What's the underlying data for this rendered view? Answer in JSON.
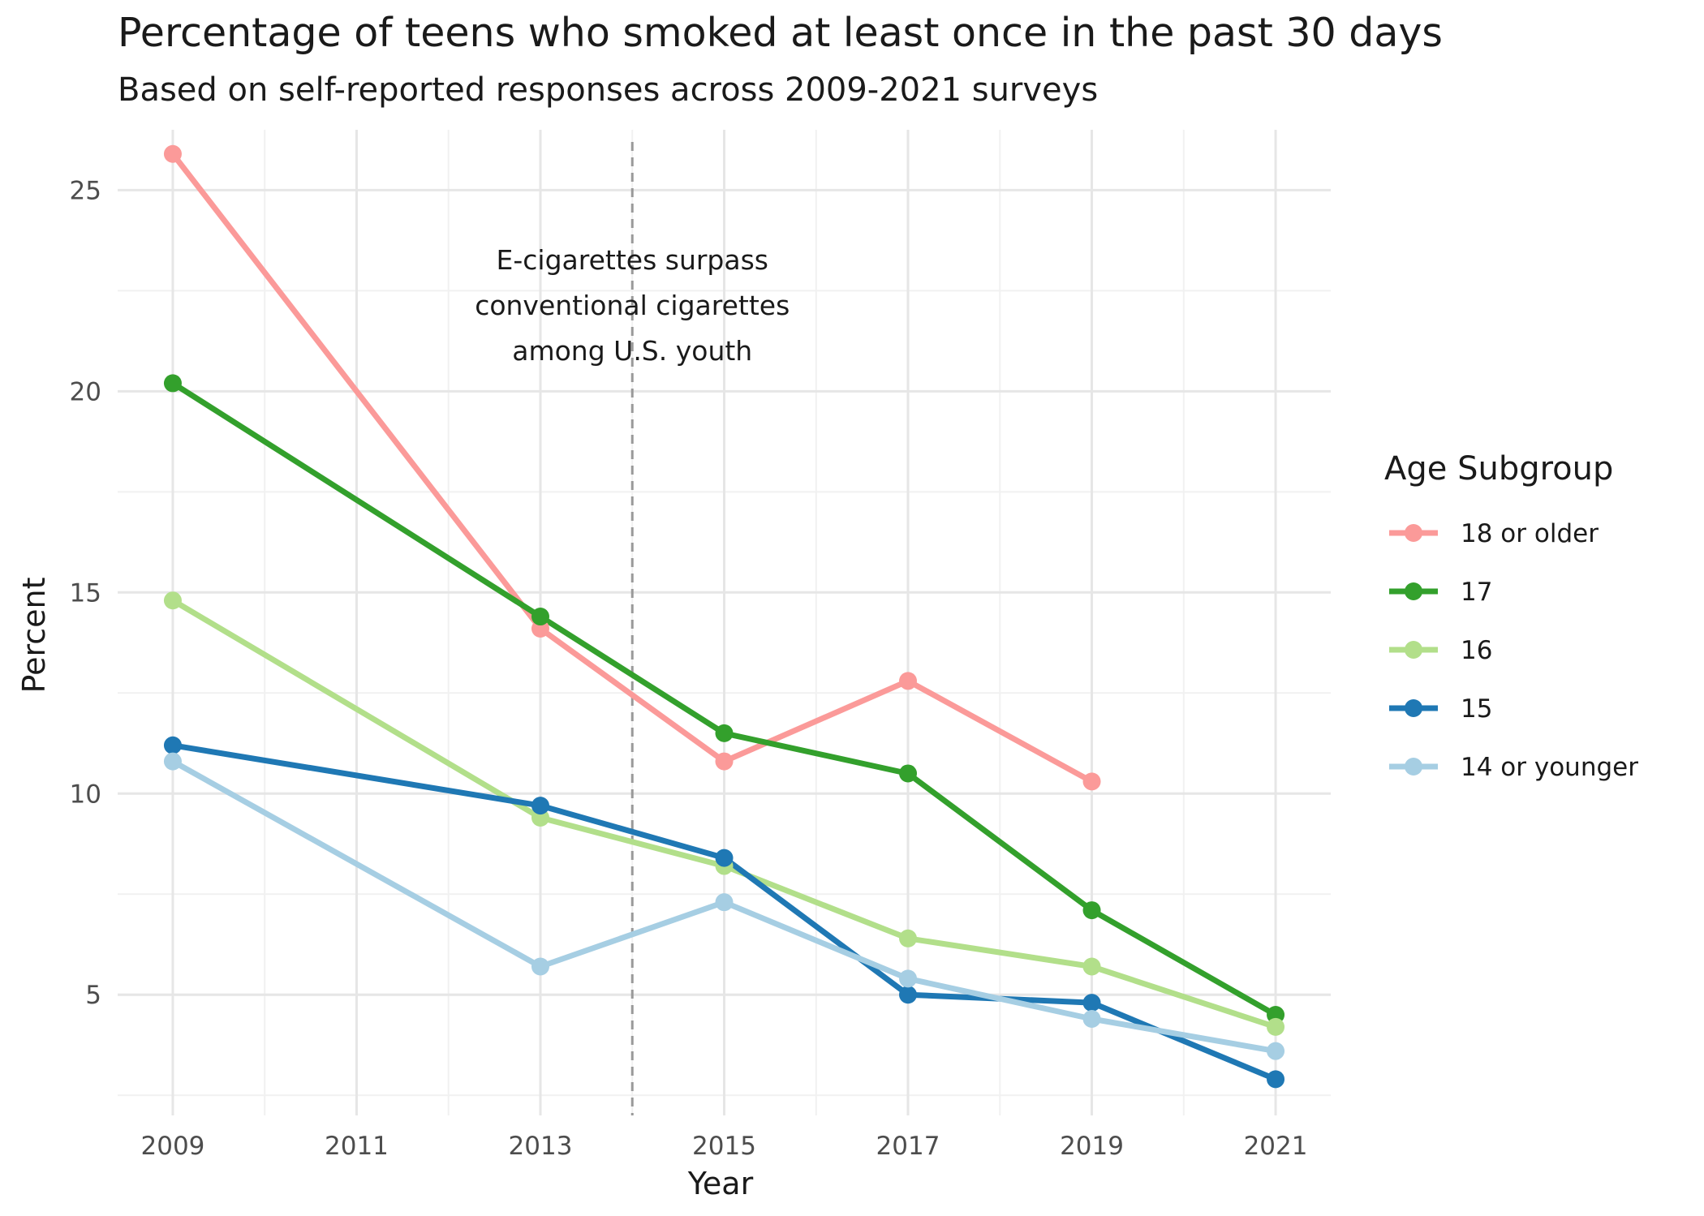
{
  "chart_data": {
    "type": "line",
    "title": "Percentage of teens who smoked at least once in the past 30 days",
    "subtitle": "Based on self-reported responses across 2009-2021 surveys",
    "xlabel": "Year",
    "ylabel": "Percent",
    "x_ticks": [
      2009,
      2011,
      2013,
      2015,
      2017,
      2019,
      2021
    ],
    "y_ticks": [
      5,
      10,
      15,
      20,
      25
    ],
    "xlim": [
      2008.4,
      2021.6
    ],
    "ylim": [
      2.0,
      26.5
    ],
    "grid": true,
    "legend": {
      "title": "Age Subgroup",
      "position": "right"
    },
    "annotation": {
      "x": 2014,
      "line_style": "dashed",
      "color": "#999999",
      "text_lines": [
        "E-cigarettes surpass",
        "conventional cigarettes",
        "among U.S. youth"
      ]
    },
    "series": [
      {
        "name": "18 or older",
        "color": "#FB9A99",
        "points": [
          [
            2009,
            25.9
          ],
          [
            2013,
            14.1
          ],
          [
            2015,
            10.8
          ],
          [
            2017,
            12.8
          ],
          [
            2019,
            10.3
          ]
        ]
      },
      {
        "name": "17",
        "color": "#33A02C",
        "points": [
          [
            2009,
            20.2
          ],
          [
            2013,
            14.4
          ],
          [
            2015,
            11.5
          ],
          [
            2017,
            10.5
          ],
          [
            2019,
            7.1
          ],
          [
            2021,
            4.5
          ]
        ]
      },
      {
        "name": "16",
        "color": "#B2DF8A",
        "points": [
          [
            2009,
            14.8
          ],
          [
            2013,
            9.4
          ],
          [
            2015,
            8.2
          ],
          [
            2017,
            6.4
          ],
          [
            2019,
            5.7
          ],
          [
            2021,
            4.2
          ]
        ]
      },
      {
        "name": "15",
        "color": "#1F78B4",
        "points": [
          [
            2009,
            11.2
          ],
          [
            2013,
            9.7
          ],
          [
            2015,
            8.4
          ],
          [
            2017,
            5.0
          ],
          [
            2019,
            4.8
          ],
          [
            2021,
            2.9
          ]
        ]
      },
      {
        "name": "14 or younger",
        "color": "#A6CEE3",
        "points": [
          [
            2009,
            10.8
          ],
          [
            2013,
            5.7
          ],
          [
            2015,
            7.3
          ],
          [
            2017,
            5.4
          ],
          [
            2019,
            4.4
          ],
          [
            2021,
            3.6
          ]
        ]
      }
    ]
  }
}
